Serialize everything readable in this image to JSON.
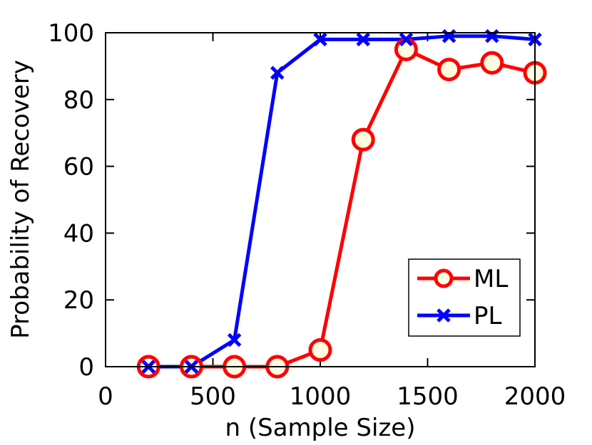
{
  "chart_data": {
    "type": "line",
    "title": "",
    "xlabel": "n (Sample Size)",
    "ylabel": "Probability of Recovery",
    "xlim": [
      0,
      2000
    ],
    "ylim": [
      0,
      100
    ],
    "x_ticks": [
      0,
      500,
      1000,
      1500,
      2000
    ],
    "y_ticks": [
      0,
      20,
      40,
      60,
      80,
      100
    ],
    "x_tick_labels": [
      "0",
      "500",
      "1000",
      "1500",
      "2000"
    ],
    "y_tick_labels": [
      "0",
      "20",
      "40",
      "60",
      "80",
      "100"
    ],
    "grid": false,
    "legend_position": "lower-right",
    "series": [
      {
        "name": "ML",
        "color": "#ff0000",
        "marker": "circle",
        "x": [
          200,
          400,
          600,
          800,
          1000,
          1200,
          1400,
          1600,
          1800,
          2000
        ],
        "y": [
          0,
          0,
          0,
          0,
          5,
          68,
          95,
          89,
          91,
          88
        ]
      },
      {
        "name": "PL",
        "color": "#0000ff",
        "marker": "x",
        "x": [
          200,
          400,
          600,
          800,
          1000,
          1200,
          1400,
          1600,
          1800,
          2000
        ],
        "y": [
          0,
          0,
          8,
          88,
          98,
          98,
          98,
          99,
          99,
          98
        ]
      }
    ]
  }
}
